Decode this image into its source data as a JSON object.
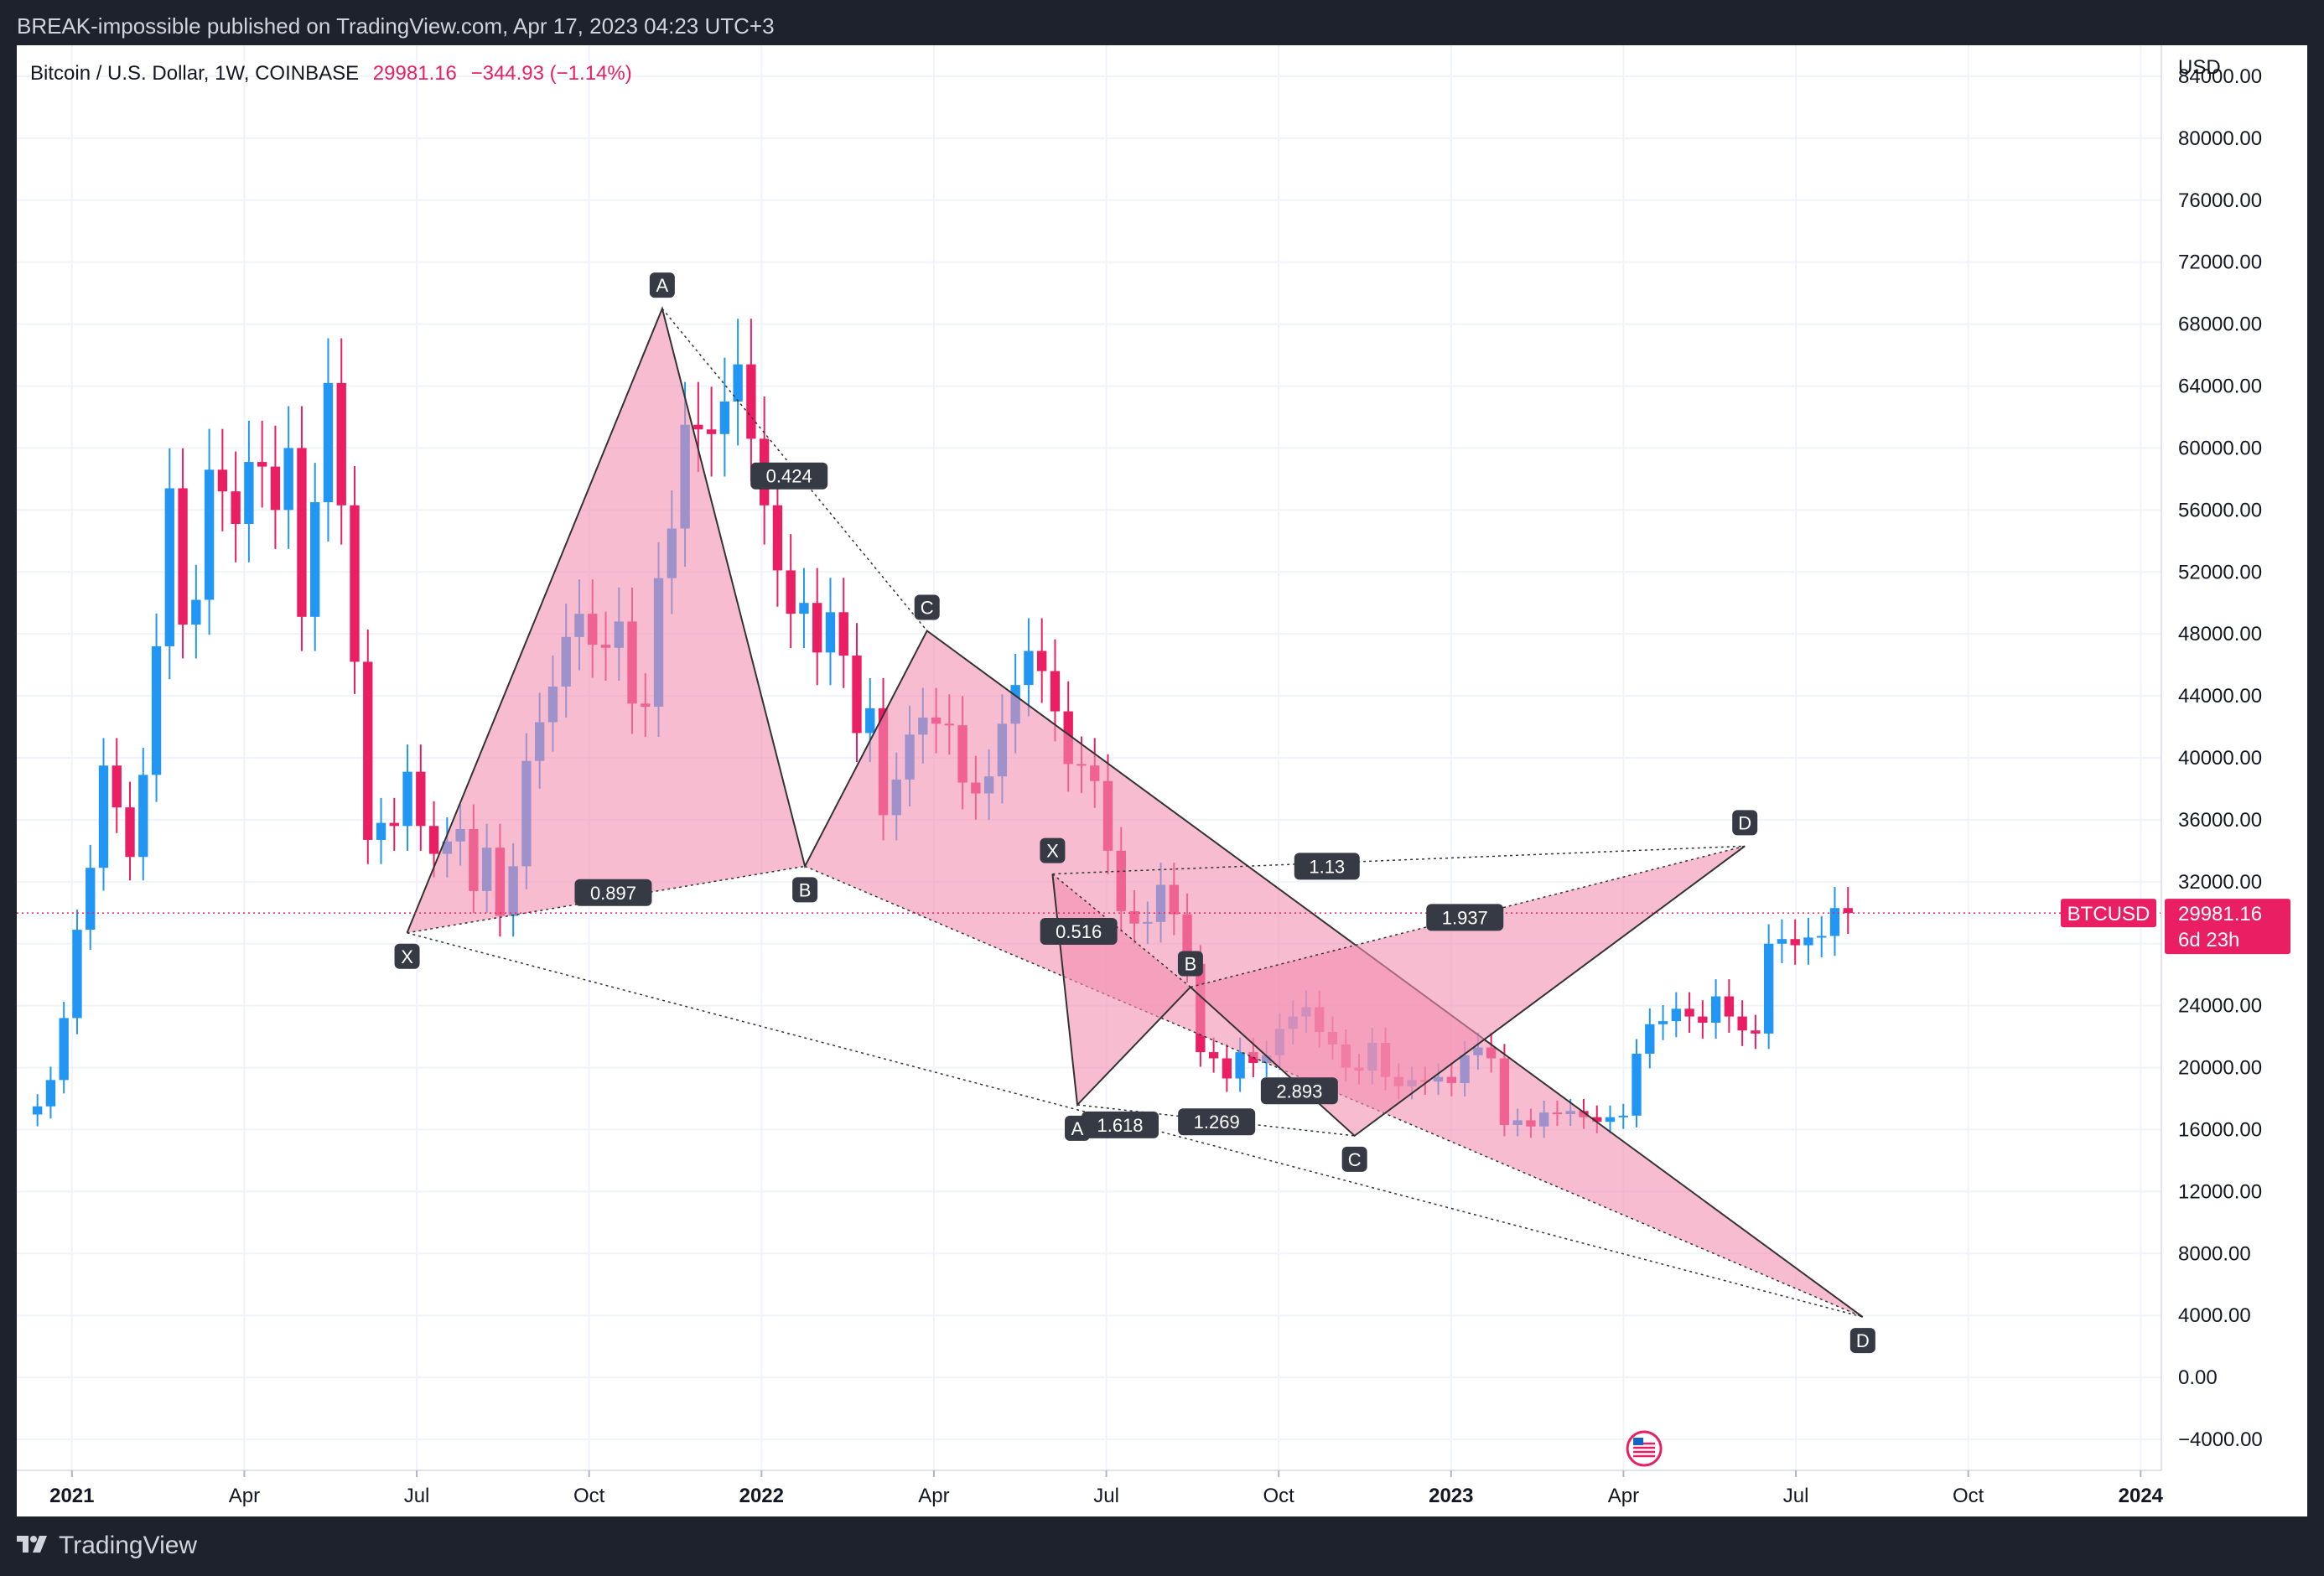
{
  "header": {
    "publisher_line": "BREAK-impossible published on TradingView.com, Apr 17, 2023 04:23 UTC+3"
  },
  "footer": {
    "brand": "TradingView"
  },
  "colors": {
    "up": "#2196f3",
    "down": "#e91e63",
    "pattern_fill": "#f48fb1",
    "pattern_line": "#333333",
    "label_bg": "#363a45"
  },
  "chart_data": {
    "type": "candlestick",
    "symbol": "Bitcoin / U.S. Dollar, 1W, COINBASE",
    "last_price": "29981.16",
    "change": "−344.93 (−1.14%)",
    "currency": "USD",
    "price_tag": {
      "symbol": "BTCUSD",
      "price": "29981.16",
      "countdown": "6d 23h",
      "value": 29981.16
    },
    "ylim": [
      -6000,
      86000
    ],
    "y_ticks": [
      {
        "v": 84000,
        "label": "84000.00"
      },
      {
        "v": 80000,
        "label": "80000.00"
      },
      {
        "v": 76000,
        "label": "76000.00"
      },
      {
        "v": 72000,
        "label": "72000.00"
      },
      {
        "v": 68000,
        "label": "68000.00"
      },
      {
        "v": 64000,
        "label": "64000.00"
      },
      {
        "v": 60000,
        "label": "60000.00"
      },
      {
        "v": 56000,
        "label": "56000.00"
      },
      {
        "v": 52000,
        "label": "52000.00"
      },
      {
        "v": 48000,
        "label": "48000.00"
      },
      {
        "v": 44000,
        "label": "44000.00"
      },
      {
        "v": 40000,
        "label": "40000.00"
      },
      {
        "v": 36000,
        "label": "36000.00"
      },
      {
        "v": 32000,
        "label": "32000.00"
      },
      {
        "v": 24000,
        "label": "24000.00"
      },
      {
        "v": 20000,
        "label": "20000.00"
      },
      {
        "v": 16000,
        "label": "16000.00"
      },
      {
        "v": 12000,
        "label": "12000.00"
      },
      {
        "v": 8000,
        "label": "8000.00"
      },
      {
        "v": 4000,
        "label": "4000.00"
      },
      {
        "v": 0,
        "label": "0.00"
      },
      {
        "v": -4000,
        "label": "−4000.00"
      }
    ],
    "x_ticks": [
      {
        "t": 2021.0,
        "label": "2021",
        "bold": true
      },
      {
        "t": 2021.25,
        "label": "Apr"
      },
      {
        "t": 2021.5,
        "label": "Jul"
      },
      {
        "t": 2021.75,
        "label": "Oct"
      },
      {
        "t": 2022.0,
        "label": "2022",
        "bold": true
      },
      {
        "t": 2022.25,
        "label": "Apr"
      },
      {
        "t": 2022.5,
        "label": "Jul"
      },
      {
        "t": 2022.75,
        "label": "Oct"
      },
      {
        "t": 2023.0,
        "label": "2023",
        "bold": true
      },
      {
        "t": 2023.25,
        "label": "Apr"
      },
      {
        "t": 2023.5,
        "label": "Jul"
      },
      {
        "t": 2023.75,
        "label": "Oct"
      },
      {
        "t": 2024.0,
        "label": "2024",
        "bold": true
      }
    ],
    "closes": [
      17500,
      19200,
      23200,
      28900,
      32900,
      39500,
      36800,
      33600,
      38900,
      47200,
      57400,
      48600,
      50200,
      58600,
      57200,
      55100,
      59100,
      58800,
      56000,
      60000,
      49100,
      56500,
      64200,
      56300,
      46200,
      34700,
      35800,
      35600,
      39100,
      35600,
      33800,
      34600,
      35400,
      31400,
      34200,
      29800,
      33000,
      39800,
      42300,
      44600,
      47800,
      49300,
      47300,
      47100,
      48800,
      43500,
      43300,
      51600,
      54800,
      61500,
      61200,
      60900,
      63000,
      65400,
      60600,
      56300,
      52100,
      49300,
      50000,
      46800,
      49400,
      46600,
      41600,
      43200,
      36300,
      38600,
      41500,
      42600,
      42200,
      42100,
      38400,
      37700,
      38800,
      42200,
      44700,
      46900,
      45600,
      43000,
      39600,
      39500,
      38500,
      34000,
      30100,
      29300,
      29400,
      31800,
      29900,
      26700,
      21000,
      20600,
      19300,
      21000,
      20300,
      20800,
      22500,
      23300,
      23900,
      22300,
      21500,
      20000,
      19800,
      21600,
      19400,
      18800,
      19200,
      19100,
      19400,
      19000,
      20800,
      21300,
      20600,
      16300,
      16600,
      16200,
      17100,
      17000,
      17200,
      16800,
      16500,
      16800,
      16900,
      20900,
      22800,
      23000,
      23800,
      23300,
      22900,
      24600,
      23300,
      22400,
      22200,
      28000,
      28300,
      27900,
      28400,
      28500,
      30300,
      29981
    ],
    "pattern_large": {
      "points": [
        {
          "label": "X",
          "t": 2021.486,
          "v": 28700
        },
        {
          "label": "A",
          "t": 2021.856,
          "v": 69000
        },
        {
          "label": "B",
          "t": 2022.063,
          "v": 33000
        },
        {
          "label": "C",
          "t": 2022.24,
          "v": 48200
        },
        {
          "label": "D",
          "t": 2023.597,
          "v": 3900
        }
      ],
      "ratios": [
        {
          "text": "0.897",
          "t": 2021.785,
          "v": 31300
        },
        {
          "text": "0.424",
          "t": 2022.04,
          "v": 58200
        },
        {
          "text": "1.618",
          "t": 2022.52,
          "v": 16300
        },
        {
          "text": "1.269",
          "t": 2022.66,
          "v": 16500
        }
      ]
    },
    "pattern_small": {
      "points": [
        {
          "label": "X",
          "t": 2022.422,
          "v": 32500
        },
        {
          "label": "A",
          "t": 2022.458,
          "v": 17600
        },
        {
          "label": "B",
          "t": 2022.622,
          "v": 25200
        },
        {
          "label": "C",
          "t": 2022.86,
          "v": 15600
        },
        {
          "label": "D",
          "t": 2023.426,
          "v": 34300
        }
      ],
      "ratios": [
        {
          "text": "0.516",
          "t": 2022.46,
          "v": 28800
        },
        {
          "text": "1.13",
          "t": 2022.82,
          "v": 33000
        },
        {
          "text": "2.893",
          "t": 2022.78,
          "v": 18500
        },
        {
          "text": "1.937",
          "t": 2023.02,
          "v": 29700
        }
      ]
    }
  }
}
